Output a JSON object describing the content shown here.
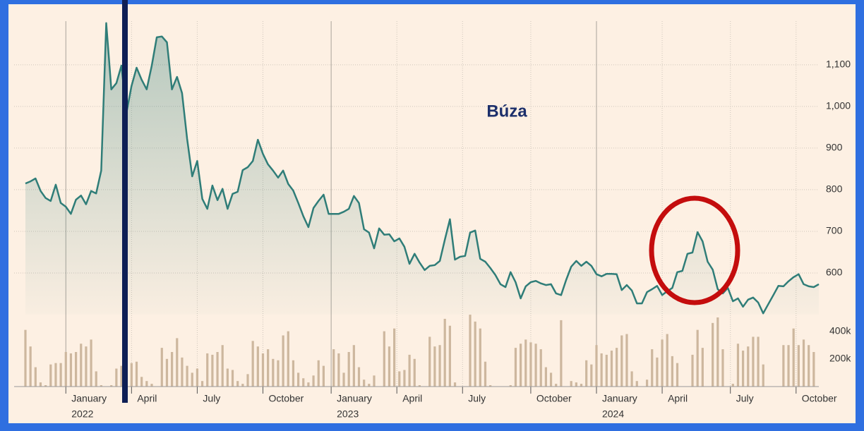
{
  "chart_data": {
    "type": "line",
    "title": "Búza",
    "categories": [
      null,
      null,
      null,
      null,
      null,
      null,
      null,
      null,
      null,
      null,
      null,
      null,
      null,
      null,
      null,
      null,
      null,
      null,
      null,
      null,
      null,
      null,
      null,
      null,
      null,
      null,
      null,
      null,
      null,
      null,
      null,
      null,
      null,
      null,
      null,
      null,
      null,
      null,
      null,
      null,
      null,
      null,
      null,
      null,
      null,
      null,
      null,
      null,
      null,
      null,
      null,
      null,
      null,
      null,
      null,
      null,
      null,
      null,
      null,
      null,
      null,
      null,
      null,
      null,
      null,
      null,
      null,
      null,
      null,
      null,
      null,
      null,
      null,
      null,
      null,
      null,
      null,
      null,
      null,
      null,
      null,
      null,
      null,
      null,
      null,
      null,
      null,
      null,
      null,
      null,
      null,
      null,
      null,
      null,
      null,
      null,
      null,
      null,
      null,
      null,
      null,
      null,
      null,
      null,
      null,
      null,
      null,
      null,
      null,
      null,
      null,
      null,
      null,
      null,
      null,
      null,
      null,
      null,
      null,
      null,
      null,
      null,
      null,
      null,
      null,
      null,
      null,
      null,
      null,
      null,
      null,
      null,
      null,
      null,
      null,
      null,
      null,
      null,
      null,
      null,
      null,
      null,
      null,
      null,
      null,
      null,
      null,
      null,
      null,
      null,
      null,
      null,
      null,
      null,
      null,
      null,
      null,
      null
    ],
    "series": [
      {
        "color": "#2f7d78",
        "values": [
          815,
          820,
          827,
          797,
          780,
          773,
          812,
          768,
          759,
          742,
          776,
          786,
          765,
          797,
          791,
          846,
          1200,
          1041,
          1056,
          1098,
          985,
          1049,
          1093,
          1064,
          1041,
          1098,
          1166,
          1168,
          1154,
          1041,
          1071,
          1032,
          922,
          832,
          869,
          778,
          754,
          810,
          775,
          802,
          754,
          790,
          795,
          847,
          854,
          869,
          920,
          886,
          861,
          846,
          829,
          846,
          814,
          798,
          768,
          736,
          710,
          756,
          773,
          788,
          742,
          742,
          742,
          747,
          754,
          785,
          768,
          705,
          697,
          659,
          707,
          692,
          693,
          676,
          683,
          663,
          622,
          646,
          625,
          607,
          617,
          619,
          629,
          680,
          729,
          632,
          639,
          641,
          697,
          702,
          634,
          627,
          612,
          595,
          573,
          566,
          602,
          578,
          539,
          568,
          578,
          581,
          575,
          571,
          573,
          551,
          547,
          583,
          615,
          629,
          617,
          627,
          617,
          597,
          592,
          598,
          598,
          597,
          559,
          571,
          558,
          527,
          527,
          554,
          561,
          569,
          547,
          556,
          564,
          602,
          605,
          646,
          649,
          698,
          676,
          627,
          608,
          561,
          551,
          564,
          532,
          539,
          519,
          536,
          541,
          529,
          503,
          525,
          547,
          569,
          568,
          580,
          590,
          597,
          573,
          568,
          566,
          573
        ]
      },
      {
        "color": "#cdb79e",
        "axis": "y2",
        "values": [
          410000,
          290000,
          140000,
          30000,
          10000,
          160000,
          170000,
          170000,
          250000,
          240000,
          250000,
          310000,
          290000,
          340000,
          110000,
          10000,
          0,
          10000,
          130000,
          150000,
          190000,
          170000,
          180000,
          70000,
          40000,
          20000,
          0,
          280000,
          200000,
          250000,
          350000,
          210000,
          150000,
          100000,
          130000,
          40000,
          240000,
          230000,
          250000,
          300000,
          130000,
          120000,
          40000,
          20000,
          90000,
          330000,
          290000,
          240000,
          270000,
          200000,
          190000,
          370000,
          400000,
          190000,
          100000,
          60000,
          30000,
          80000,
          190000,
          150000,
          0,
          270000,
          240000,
          100000,
          250000,
          300000,
          140000,
          50000,
          20000,
          80000,
          0,
          400000,
          290000,
          420000,
          110000,
          120000,
          230000,
          200000,
          10000,
          0,
          360000,
          290000,
          300000,
          490000,
          440000,
          30000,
          0,
          0,
          520000,
          470000,
          420000,
          180000,
          10000,
          0,
          0,
          0,
          10000,
          280000,
          310000,
          340000,
          320000,
          310000,
          270000,
          140000,
          100000,
          20000,
          480000,
          0,
          40000,
          30000,
          20000,
          190000,
          160000,
          300000,
          240000,
          230000,
          260000,
          280000,
          370000,
          380000,
          110000,
          40000,
          0,
          50000,
          270000,
          210000,
          340000,
          380000,
          220000,
          170000,
          0,
          0,
          230000,
          410000,
          280000,
          0,
          460000,
          500000,
          270000,
          0,
          20000,
          310000,
          260000,
          290000,
          360000,
          360000,
          160000,
          0,
          0,
          0,
          300000,
          300000,
          420000,
          300000,
          340000,
          300000,
          250000,
          0
        ]
      }
    ],
    "ylim": [
      500,
      1220
    ],
    "yticks": [
      600,
      700,
      800,
      900,
      {
        "value": 1000,
        "label": "1,000"
      },
      {
        "value": 1100,
        "label": "1,100"
      }
    ],
    "y2lim": [
      0,
      500000
    ],
    "y2ticks": [
      {
        "value": 200000,
        "label": "200k"
      },
      {
        "value": 400000,
        "label": "400k"
      }
    ],
    "xticks": [
      {
        "value": 8,
        "label": "January",
        "year": "2022"
      },
      {
        "value": 21,
        "label": "April"
      },
      {
        "value": 34,
        "label": "July"
      },
      {
        "value": 47,
        "label": "October"
      },
      {
        "value": 60.5,
        "label": "January",
        "year": "2023"
      },
      {
        "value": 73.5,
        "label": "April"
      },
      {
        "value": 86.5,
        "label": "July"
      },
      {
        "value": 100,
        "label": "October"
      },
      {
        "value": 113,
        "label": "January",
        "year": "2024"
      },
      {
        "value": 126,
        "label": "April"
      },
      {
        "value": 139.5,
        "label": "July"
      },
      {
        "value": 152.5,
        "label": "October"
      }
    ],
    "grid": true
  }
}
